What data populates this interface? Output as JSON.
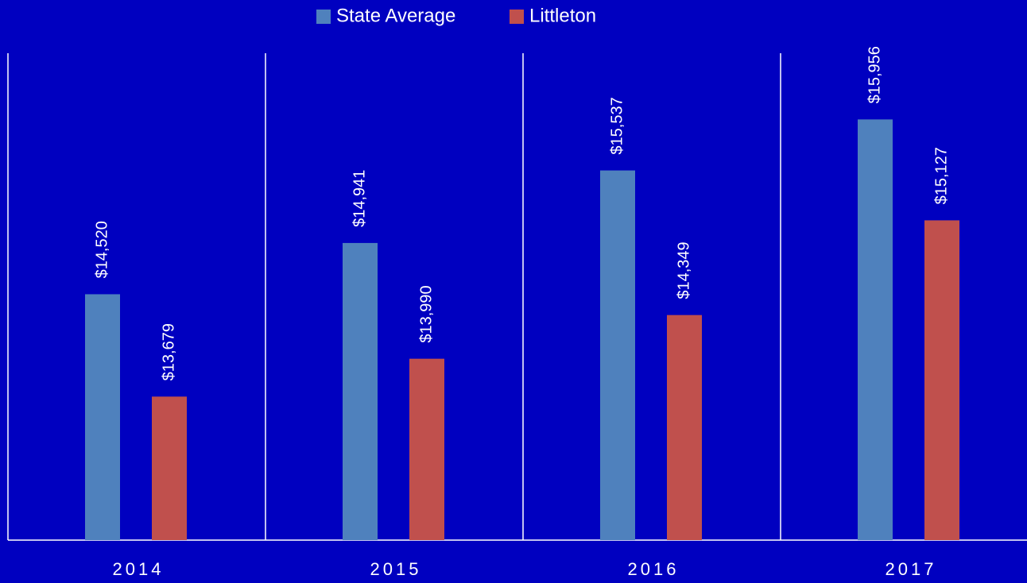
{
  "chart_data": {
    "type": "bar",
    "categories": [
      "2014",
      "2015",
      "2016",
      "2017"
    ],
    "series": [
      {
        "name": "State Average",
        "color": "#4f81bd",
        "values": [
          14520,
          14941,
          15537,
          15956
        ],
        "value_labels": [
          "$14,520",
          "$14,941",
          "$15,537",
          "$15,956"
        ]
      },
      {
        "name": "Littleton",
        "color": "#c0504d",
        "values": [
          13679,
          13990,
          14349,
          15127
        ],
        "value_labels": [
          "$13,679",
          "$13,990",
          "$14,349",
          "$15,127"
        ]
      }
    ],
    "ylim": [
      12500,
      16500
    ],
    "legend": "top"
  }
}
